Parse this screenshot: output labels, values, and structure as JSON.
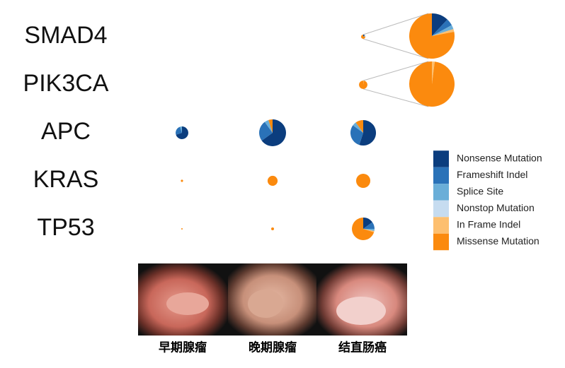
{
  "chart_data": {
    "type": "pie-grid",
    "rows": [
      "SMAD4",
      "PIK3CA",
      "APC",
      "KRAS",
      "TP53"
    ],
    "columns": [
      "早期腺瘤",
      "晚期腺瘤",
      "结直肠癌"
    ],
    "series": [
      {
        "name": "Nonsense Mutation",
        "color": "#0b3d7e"
      },
      {
        "name": "Frameshift Indel",
        "color": "#2a72b8"
      },
      {
        "name": "Splice Site",
        "color": "#6aaed8"
      },
      {
        "name": "Nonstop Mutation",
        "color": "#c6dcf0"
      },
      {
        "name": "In Frame Indel",
        "color": "#fdbf6f"
      },
      {
        "name": "Missense Mutation",
        "color": "#fb8a0e"
      }
    ],
    "cells": [
      [
        null,
        null,
        {
          "frequency": 1.8,
          "magnified": true,
          "values": [
            12,
            5,
            3,
            0,
            2,
            78
          ]
        }
      ],
      [
        null,
        null,
        {
          "frequency": 7,
          "magnified": true,
          "values": [
            0,
            0,
            0,
            0,
            2,
            98
          ]
        }
      ],
      [
        {
          "frequency": 16,
          "values": [
            70,
            25,
            5,
            0,
            0,
            0
          ]
        },
        {
          "frequency": 72,
          "values": [
            65,
            25,
            5,
            0,
            0,
            5
          ]
        },
        {
          "frequency": 65,
          "values": [
            55,
            30,
            5,
            0,
            0,
            10
          ]
        }
      ],
      [
        {
          "frequency": 0.5,
          "values": [
            0,
            0,
            0,
            0,
            0,
            100
          ]
        },
        {
          "frequency": 10,
          "values": [
            0,
            0,
            0,
            0,
            0,
            100
          ]
        },
        {
          "frequency": 20,
          "values": [
            0,
            0,
            0,
            0,
            0,
            100
          ]
        }
      ],
      [
        {
          "frequency": 0.2,
          "values": [
            0,
            0,
            0,
            0,
            0,
            100
          ]
        },
        {
          "frequency": 0.8,
          "values": [
            0,
            0,
            0,
            0,
            0,
            100
          ]
        },
        {
          "frequency": 51,
          "values": [
            15,
            10,
            3,
            0,
            2,
            70
          ]
        }
      ]
    ]
  }
}
